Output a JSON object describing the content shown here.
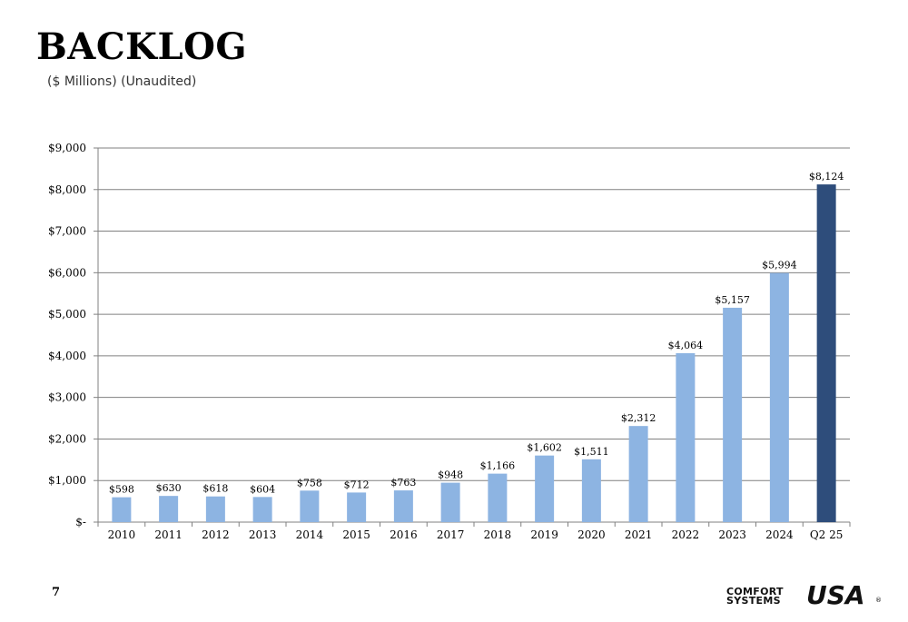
{
  "header": {
    "title": "BACKLOG",
    "subtitle": "($ Millions) (Unaudited)"
  },
  "footer": {
    "page_number": "7",
    "logo_line1": "COMFORT",
    "logo_line2": "SYSTEMS",
    "logo_usa": "USA",
    "logo_reg": "®"
  },
  "colors": {
    "bar_default": "#8DB4E2",
    "bar_highlight": "#2E4D7B",
    "grid": "#808080"
  },
  "chart_data": {
    "type": "bar",
    "categories": [
      "2010",
      "2011",
      "2012",
      "2013",
      "2014",
      "2015",
      "2016",
      "2017",
      "2018",
      "2019",
      "2020",
      "2021",
      "2022",
      "2023",
      "2024",
      "Q2 25"
    ],
    "values": [
      598,
      630,
      618,
      604,
      758,
      712,
      763,
      948,
      1166,
      1602,
      1511,
      2312,
      4064,
      5157,
      5994,
      8124
    ],
    "data_labels": [
      "$598",
      "$630",
      "$618",
      "$604",
      "$758",
      "$712",
      "$763",
      "$948",
      "$1,166",
      "$1,602",
      "$1,511",
      "$2,312",
      "$4,064",
      "$5,157",
      "$5,994",
      "$8,124"
    ],
    "highlight_category": "Q2 25",
    "ylim": [
      0,
      9000
    ],
    "yticks": [
      0,
      1000,
      2000,
      3000,
      4000,
      5000,
      6000,
      7000,
      8000,
      9000
    ],
    "ytick_labels": [
      "$-",
      "$1,000",
      "$2,000",
      "$3,000",
      "$4,000",
      "$5,000",
      "$6,000",
      "$7,000",
      "$8,000",
      "$9,000"
    ],
    "grid": true,
    "legend": "none"
  }
}
